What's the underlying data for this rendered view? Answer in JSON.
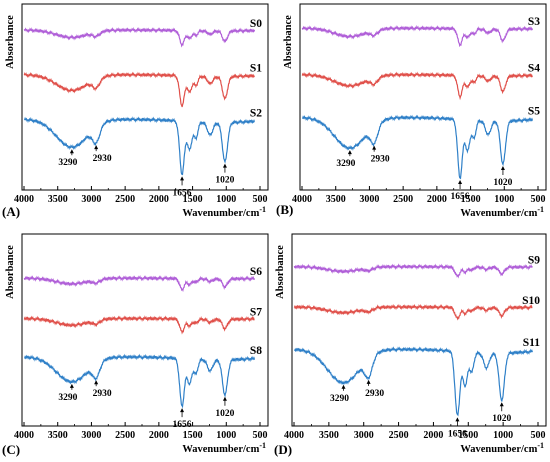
{
  "chart_data": [
    {
      "type": "line",
      "panel_label": "(A)",
      "xlabel": "Wavenumber/cm",
      "xlabel_sup": "-1",
      "ylabel": "Absorbance",
      "xlim": [
        4000,
        500
      ],
      "xticks": [
        4000,
        3500,
        3000,
        2500,
        2000,
        1500,
        1000,
        500
      ],
      "grid": false,
      "series": [
        {
          "name": "S0",
          "color": "#b05fd8",
          "offset": 0.86,
          "scale": 0.08
        },
        {
          "name": "S1",
          "color": "#e0504a",
          "offset": 0.62,
          "scale": 0.17
        },
        {
          "name": "S2",
          "color": "#2f80c8",
          "offset": 0.38,
          "scale": 0.3
        }
      ],
      "annotations": [
        "3290",
        "2930",
        "1656",
        "1020"
      ]
    },
    {
      "type": "line",
      "panel_label": "(B)",
      "xlabel": "Wavenumber/cm",
      "xlabel_sup": "-1",
      "ylabel": "Absorbance",
      "xlim": [
        4000,
        500
      ],
      "xticks": [
        4000,
        3500,
        3000,
        2500,
        2000,
        1500,
        1000,
        500
      ],
      "grid": false,
      "series": [
        {
          "name": "S3",
          "color": "#b05fd8",
          "offset": 0.87,
          "scale": 0.09
        },
        {
          "name": "S4",
          "color": "#e0504a",
          "offset": 0.62,
          "scale": 0.12
        },
        {
          "name": "S5",
          "color": "#2f80c8",
          "offset": 0.39,
          "scale": 0.33
        }
      ],
      "annotations": [
        "3290",
        "2930",
        "1656",
        "1020"
      ]
    },
    {
      "type": "line",
      "panel_label": "(C)",
      "xlabel": "Wavenumber/cm",
      "xlabel_sup": "-1",
      "ylabel": "Absorbance",
      "xlim": [
        4000,
        500
      ],
      "xticks": [
        4000,
        3500,
        3000,
        2500,
        2000,
        1500,
        1000,
        500
      ],
      "grid": false,
      "series": [
        {
          "name": "S6",
          "color": "#b05fd8",
          "offset": 0.77,
          "scale": 0.06
        },
        {
          "name": "S7",
          "color": "#e0504a",
          "offset": 0.56,
          "scale": 0.07
        },
        {
          "name": "S8",
          "color": "#2f80c8",
          "offset": 0.36,
          "scale": 0.26
        }
      ],
      "annotations": [
        "3290",
        "2930",
        "1656",
        "1020"
      ]
    },
    {
      "type": "line",
      "panel_label": "(D)",
      "xlabel": "Wavenumber/cm",
      "xlabel_sup": "-1",
      "ylabel": "Absorbance",
      "xlim": [
        4000,
        500
      ],
      "xticks": [
        4000,
        3500,
        3000,
        2500,
        2000,
        1500,
        1000,
        500
      ],
      "grid": false,
      "series": [
        {
          "name": "S9",
          "color": "#b05fd8",
          "offset": 0.83,
          "scale": 0.05
        },
        {
          "name": "S10",
          "color": "#e0504a",
          "offset": 0.62,
          "scale": 0.06
        },
        {
          "name": "S11",
          "color": "#2f80c8",
          "offset": 0.4,
          "scale": 0.35
        }
      ],
      "annotations": [
        "3290",
        "2930",
        "1656",
        "1020"
      ]
    }
  ],
  "peaks": {
    "3290": {
      "pos": 3290,
      "width": 230,
      "depth": 0.5
    },
    "2930": {
      "pos": 2930,
      "width": 55,
      "depth": 0.28
    },
    "1656": {
      "pos": 1656,
      "width": 35,
      "depth": 0.95
    },
    "1545": {
      "pos": 1545,
      "width": 35,
      "depth": 0.5
    },
    "1450": {
      "pos": 1450,
      "width": 30,
      "depth": 0.28
    },
    "1240": {
      "pos": 1240,
      "width": 40,
      "depth": 0.22
    },
    "1020": {
      "pos": 1020,
      "width": 38,
      "depth": 0.7
    }
  }
}
